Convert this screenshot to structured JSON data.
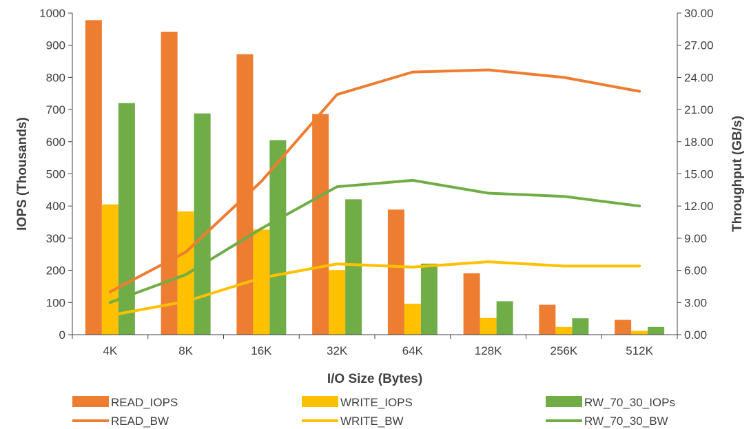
{
  "chart_data": {
    "type": "bar",
    "categories": [
      "4K",
      "8K",
      "16K",
      "32K",
      "64K",
      "128K",
      "256K",
      "512K"
    ],
    "xlabel": "I/O Size (Bytes)",
    "ylabel": "IOPS (Thousands)",
    "y2label": "Throughput (GB/s)",
    "ylim": [
      0,
      1000
    ],
    "yticks": [
      "0",
      "100",
      "200",
      "300",
      "400",
      "500",
      "600",
      "700",
      "800",
      "900",
      "1000"
    ],
    "y2lim": [
      0,
      30
    ],
    "y2ticks": [
      "0.00",
      "3.00",
      "6.00",
      "9.00",
      "12.00",
      "15.00",
      "18.00",
      "21.00",
      "24.00",
      "27.00",
      "30.00"
    ],
    "grid": false,
    "legend_position": "bottom",
    "bar_series": [
      {
        "name": "READ_IOPS",
        "color": "#ED7D31",
        "values": [
          978,
          942,
          872,
          686,
          389,
          191,
          93,
          46
        ]
      },
      {
        "name": "WRITE_IOPS",
        "color": "#FFC000",
        "values": [
          405,
          383,
          327,
          201,
          96,
          52,
          24,
          12
        ]
      },
      {
        "name": "RW_70_30_IOPs",
        "color": "#70AD47",
        "values": [
          720,
          688,
          605,
          421,
          221,
          104,
          51,
          24
        ]
      }
    ],
    "line_series": [
      {
        "name": "READ_BW",
        "color": "#ED7D31",
        "values": [
          4.0,
          7.7,
          14.3,
          22.4,
          24.5,
          24.7,
          24.0,
          22.7
        ]
      },
      {
        "name": "WRITE_BW",
        "color": "#FFC000",
        "values": [
          1.8,
          3.1,
          5.3,
          6.6,
          6.3,
          6.8,
          6.4,
          6.4
        ]
      },
      {
        "name": "RW_70_30_BW",
        "color": "#70AD47",
        "values": [
          3.0,
          5.6,
          9.9,
          13.8,
          14.4,
          13.2,
          12.9,
          12.0
        ]
      }
    ]
  }
}
